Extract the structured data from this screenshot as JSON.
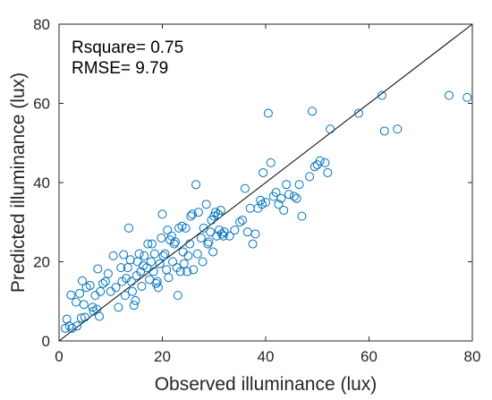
{
  "chart_data": {
    "type": "scatter",
    "xlabel": "Observed illuminance (lux)",
    "ylabel": "Predicted illuminance (lux)",
    "xlim": [
      0,
      80
    ],
    "ylim": [
      0,
      80
    ],
    "xticks": [
      "0",
      "20",
      "40",
      "60",
      "80"
    ],
    "yticks": [
      "0",
      "20",
      "40",
      "60",
      "80"
    ],
    "grid": false,
    "legend": "none",
    "annotations": [
      "Rsquare= 0.75",
      "RMSE= 9.79"
    ],
    "reference_line": {
      "x": [
        0,
        80
      ],
      "y": [
        0,
        80
      ]
    },
    "marker_color": "#0072BD",
    "line_color": "#000000",
    "series": [
      {
        "points": [
          [
            1.2,
            3.2
          ],
          [
            1.5,
            5.5
          ],
          [
            2.0,
            3.8
          ],
          [
            2.3,
            11.6
          ],
          [
            2.5,
            3.2
          ],
          [
            3.3,
            9.8
          ],
          [
            3.5,
            3.8
          ],
          [
            4.0,
            12.0
          ],
          [
            4.3,
            5.8
          ],
          [
            4.5,
            15.2
          ],
          [
            4.8,
            9.2
          ],
          [
            5.0,
            6.0
          ],
          [
            5.3,
            13.5
          ],
          [
            6.0,
            14.0
          ],
          [
            6.5,
            8.5
          ],
          [
            6.7,
            7.5
          ],
          [
            7.0,
            11.5
          ],
          [
            7.3,
            8.0
          ],
          [
            7.5,
            18.2
          ],
          [
            7.8,
            6.2
          ],
          [
            8.0,
            12.5
          ],
          [
            8.5,
            14.5
          ],
          [
            9.0,
            15.0
          ],
          [
            9.5,
            17.0
          ],
          [
            10.0,
            12.5
          ],
          [
            10.5,
            21.5
          ],
          [
            11.0,
            13.5
          ],
          [
            11.5,
            8.5
          ],
          [
            12.0,
            18.5
          ],
          [
            12.2,
            15.0
          ],
          [
            12.5,
            21.8
          ],
          [
            12.8,
            11.5
          ],
          [
            13.0,
            15.8
          ],
          [
            13.3,
            18.5
          ],
          [
            13.5,
            28.5
          ],
          [
            13.8,
            20.5
          ],
          [
            14.0,
            15.0
          ],
          [
            14.2,
            12.5
          ],
          [
            14.5,
            9.0
          ],
          [
            14.8,
            10.2
          ],
          [
            15.0,
            16.5
          ],
          [
            15.2,
            20.0
          ],
          [
            15.5,
            22.0
          ],
          [
            15.8,
            17.5
          ],
          [
            16.0,
            13.8
          ],
          [
            16.3,
            19.0
          ],
          [
            16.5,
            21.5
          ],
          [
            17.0,
            18.5
          ],
          [
            17.2,
            24.5
          ],
          [
            17.5,
            15.5
          ],
          [
            17.8,
            20.0
          ],
          [
            18.0,
            24.5
          ],
          [
            18.3,
            17.5
          ],
          [
            18.5,
            22.0
          ],
          [
            18.8,
            14.5
          ],
          [
            19.0,
            15.0
          ],
          [
            19.2,
            13.5
          ],
          [
            19.5,
            19.5
          ],
          [
            19.8,
            26.0
          ],
          [
            20.0,
            32.0
          ],
          [
            20.2,
            21.5
          ],
          [
            20.5,
            22.0
          ],
          [
            20.8,
            18.0
          ],
          [
            21.0,
            28.0
          ],
          [
            21.2,
            16.0
          ],
          [
            21.5,
            25.5
          ],
          [
            21.8,
            26.5
          ],
          [
            22.0,
            20.0
          ],
          [
            22.3,
            24.5
          ],
          [
            22.5,
            25.0
          ],
          [
            22.8,
            18.5
          ],
          [
            23.0,
            11.5
          ],
          [
            23.2,
            28.5
          ],
          [
            23.5,
            17.5
          ],
          [
            23.8,
            29.0
          ],
          [
            24.0,
            22.5
          ],
          [
            24.2,
            19.5
          ],
          [
            24.5,
            28.5
          ],
          [
            24.8,
            17.5
          ],
          [
            25.0,
            21.5
          ],
          [
            25.3,
            24.5
          ],
          [
            25.5,
            31.5
          ],
          [
            25.8,
            32.0
          ],
          [
            26.0,
            18.0
          ],
          [
            26.5,
            39.5
          ],
          [
            26.8,
            22.0
          ],
          [
            27.0,
            32.5
          ],
          [
            27.5,
            26.0
          ],
          [
            27.8,
            20.0
          ],
          [
            28.0,
            28.5
          ],
          [
            28.5,
            34.5
          ],
          [
            28.8,
            24.5
          ],
          [
            29.0,
            25.0
          ],
          [
            29.3,
            27.5
          ],
          [
            29.5,
            30.5
          ],
          [
            29.8,
            22.5
          ],
          [
            30.0,
            31.5
          ],
          [
            30.3,
            32.5
          ],
          [
            30.5,
            26.5
          ],
          [
            30.8,
            32.0
          ],
          [
            31.0,
            28.0
          ],
          [
            31.3,
            33.0
          ],
          [
            31.5,
            27.0
          ],
          [
            31.8,
            26.5
          ],
          [
            32.0,
            27.5
          ],
          [
            33.0,
            26.5
          ],
          [
            34.0,
            28.0
          ],
          [
            35.0,
            30.0
          ],
          [
            35.5,
            30.5
          ],
          [
            36.0,
            38.5
          ],
          [
            36.5,
            27.5
          ],
          [
            37.0,
            33.5
          ],
          [
            37.5,
            24.5
          ],
          [
            38.0,
            27.0
          ],
          [
            38.5,
            33.5
          ],
          [
            39.0,
            35.5
          ],
          [
            39.3,
            34.5
          ],
          [
            39.5,
            42.5
          ],
          [
            40.0,
            35.0
          ],
          [
            40.5,
            57.5
          ],
          [
            41.0,
            45.0
          ],
          [
            41.5,
            36.5
          ],
          [
            42.0,
            37.5
          ],
          [
            42.5,
            34.5
          ],
          [
            43.0,
            36.0
          ],
          [
            43.5,
            33.0
          ],
          [
            44.0,
            39.5
          ],
          [
            44.5,
            37.0
          ],
          [
            45.5,
            36.5
          ],
          [
            46.0,
            36.0
          ],
          [
            46.5,
            39.5
          ],
          [
            47.0,
            31.5
          ],
          [
            48.5,
            41.5
          ],
          [
            49.0,
            58.0
          ],
          [
            49.5,
            44.0
          ],
          [
            50.0,
            44.5
          ],
          [
            50.5,
            45.5
          ],
          [
            51.5,
            45.0
          ],
          [
            52.0,
            42.5
          ],
          [
            52.5,
            53.5
          ],
          [
            58.0,
            57.5
          ],
          [
            62.5,
            62.0
          ],
          [
            63.0,
            53.0
          ],
          [
            65.5,
            53.5
          ],
          [
            75.5,
            62.0
          ],
          [
            79.0,
            61.5
          ]
        ]
      }
    ]
  }
}
